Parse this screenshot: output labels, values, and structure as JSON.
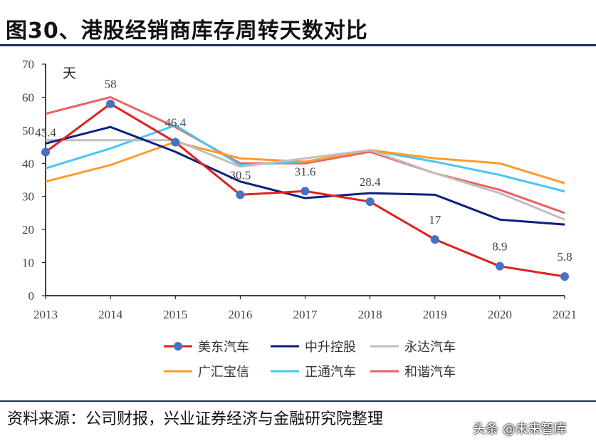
{
  "title": "图30、港股经销商库存周转天数对比",
  "source": "资料来源：公司财报，兴业证券经济与金融研究院整理",
  "watermark": "头条 @未来智库",
  "chart_data": {
    "type": "line",
    "title": "",
    "ylabel": "天",
    "xlabel": "",
    "ylim": [
      0,
      70
    ],
    "yticks": [
      0,
      10,
      20,
      30,
      40,
      50,
      60,
      70
    ],
    "categories": [
      "2013",
      "2014",
      "2015",
      "2016",
      "2017",
      "2018",
      "2019",
      "2020",
      "2021"
    ],
    "grid": false,
    "legend_placement": "bottom",
    "series": [
      {
        "name": "美东汽车",
        "color": "#e02020",
        "marker": "circle",
        "marker_color": "#4472c4",
        "labels": true,
        "values": [
          43.4,
          58,
          46.4,
          30.5,
          31.6,
          28.4,
          17,
          8.9,
          5.8
        ]
      },
      {
        "name": "中升控股",
        "color": "#0c1f7e",
        "values": [
          46,
          51,
          43.5,
          34.5,
          29.5,
          31,
          30.5,
          23,
          21.5
        ]
      },
      {
        "name": "永达汽车",
        "color": "#bfbfbf",
        "values": [
          47,
          47,
          47,
          39,
          41.5,
          44,
          37,
          31,
          23
        ]
      },
      {
        "name": "广汇宝信",
        "color": "#ff9a2e",
        "values": [
          34.5,
          39.5,
          46.5,
          41.5,
          40.5,
          44,
          41.5,
          40,
          34
        ]
      },
      {
        "name": "正通汽车",
        "color": "#47c6f2",
        "values": [
          38.5,
          44.5,
          51.5,
          39.5,
          40.5,
          44,
          40.5,
          36.5,
          31.5
        ]
      },
      {
        "name": "和谐汽车",
        "color": "#f06060",
        "values": [
          55,
          60,
          51,
          40,
          40,
          43.5,
          37,
          32,
          25
        ]
      }
    ]
  }
}
